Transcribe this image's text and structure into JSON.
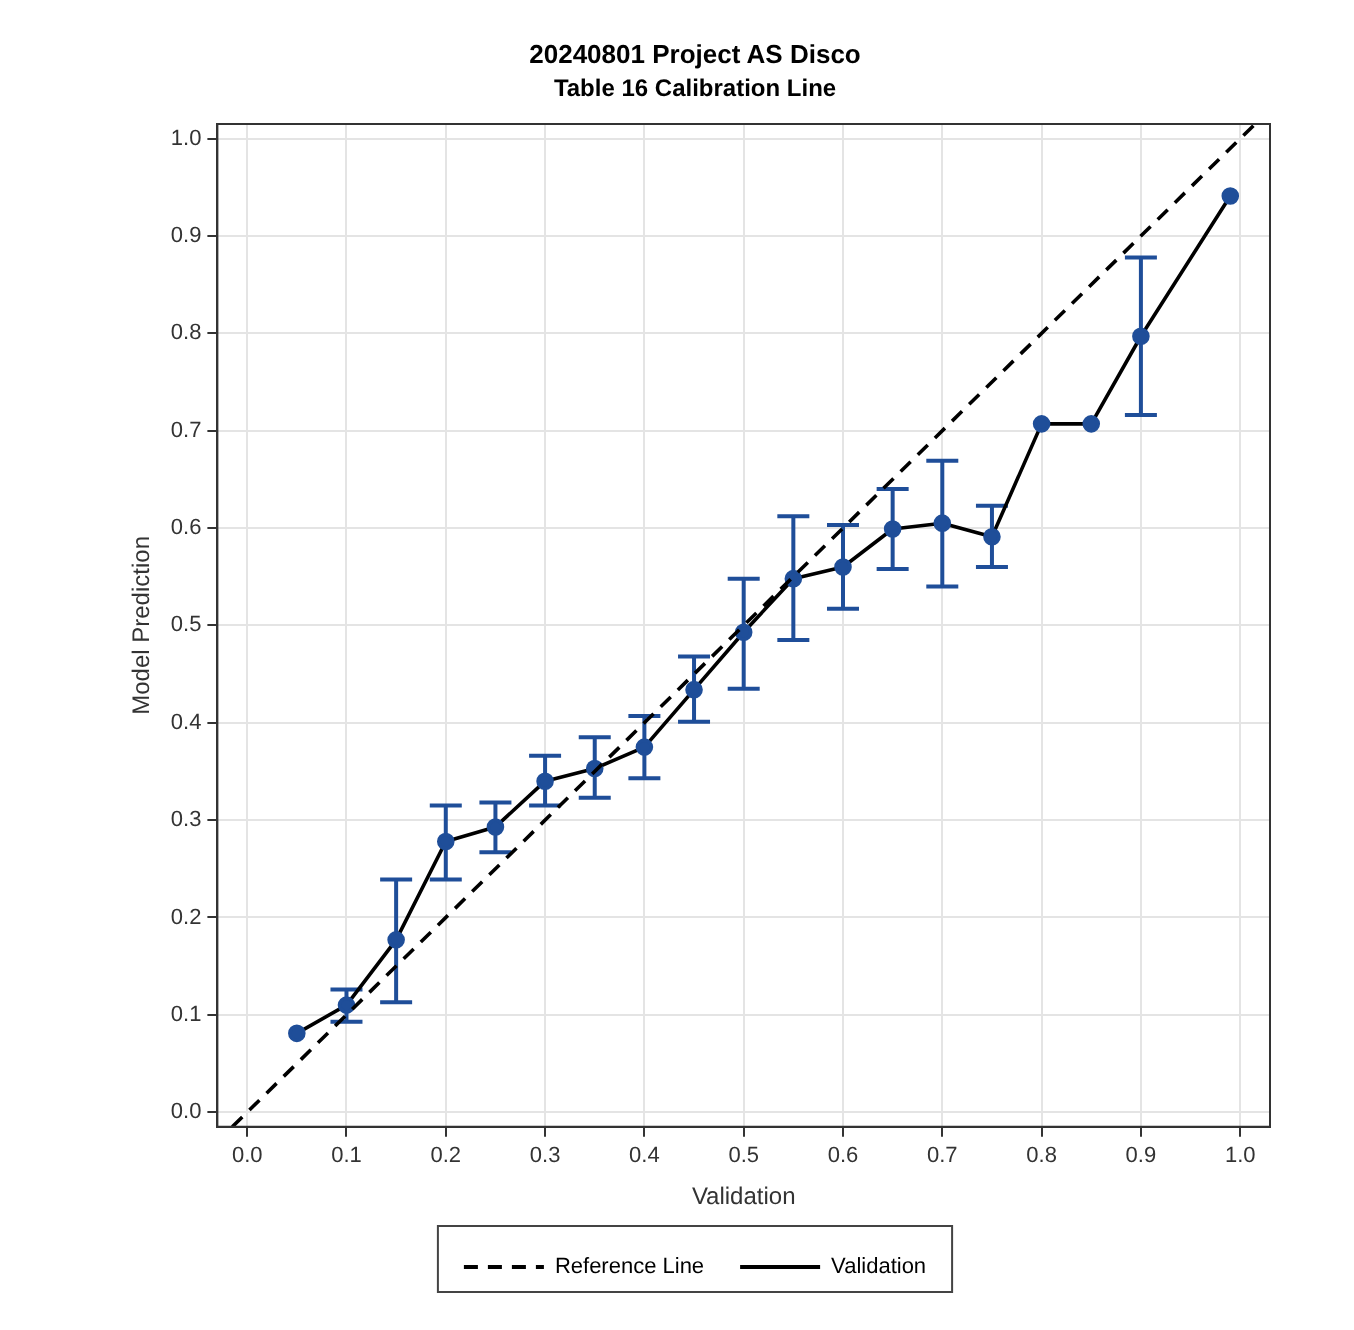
{
  "chart_data": {
    "type": "line",
    "title": "20240801 Project AS Disco",
    "subtitle": "Table 16 Calibration Line",
    "xlabel": "Validation",
    "ylabel": "Model Prediction",
    "xlim": [
      -0.03,
      1.03
    ],
    "ylim": [
      -0.015,
      1.015
    ],
    "xticks": [
      {
        "value": 0,
        "label": "0.0"
      },
      0.1,
      0.2,
      0.3,
      0.4,
      0.5,
      0.6,
      0.7,
      0.8,
      0.9,
      {
        "value": 1,
        "label": "1.0"
      }
    ],
    "yticks": [
      {
        "value": 0,
        "label": "0.0"
      },
      0.1,
      0.2,
      0.3,
      0.4,
      0.5,
      0.6,
      0.7,
      0.8,
      0.9,
      {
        "value": 1,
        "label": "1.0"
      }
    ],
    "grid": true,
    "legend": "bottom",
    "series": [
      {
        "name": "Reference Line",
        "color": "#000000",
        "line_style": "dashed",
        "marker": "none",
        "x": [
          -0.015,
          1.015
        ],
        "values": [
          -0.015,
          1.015
        ]
      },
      {
        "name": "Validation",
        "color": "#000000",
        "line_style": "solid",
        "marker": "circle",
        "x": [
          0.05,
          0.1,
          0.15,
          0.2,
          0.25,
          0.3,
          0.35,
          0.4,
          0.45,
          0.5,
          0.55,
          0.6,
          0.65,
          0.7,
          0.75,
          0.8,
          0.85,
          0.9,
          0.99
        ],
        "values": [
          0.081,
          0.11,
          0.177,
          0.278,
          0.293,
          0.34,
          0.353,
          0.375,
          0.434,
          0.493,
          0.548,
          0.56,
          0.599,
          0.605,
          0.591,
          0.707,
          0.707,
          0.797,
          0.941
        ],
        "errors": [
          null,
          [
            0.093,
            0.126
          ],
          [
            0.113,
            0.239
          ],
          [
            0.239,
            0.315
          ],
          [
            0.267,
            0.318
          ],
          [
            0.315,
            0.366
          ],
          [
            0.323,
            0.385
          ],
          [
            0.343,
            0.407
          ],
          [
            0.401,
            0.468
          ],
          [
            0.435,
            0.548
          ],
          [
            0.485,
            0.612
          ],
          [
            0.517,
            0.603
          ],
          [
            0.558,
            0.64
          ],
          [
            0.54,
            0.669
          ],
          [
            0.56,
            0.623
          ],
          null,
          null,
          [
            0.716,
            0.878
          ],
          null
        ]
      }
    ]
  }
}
